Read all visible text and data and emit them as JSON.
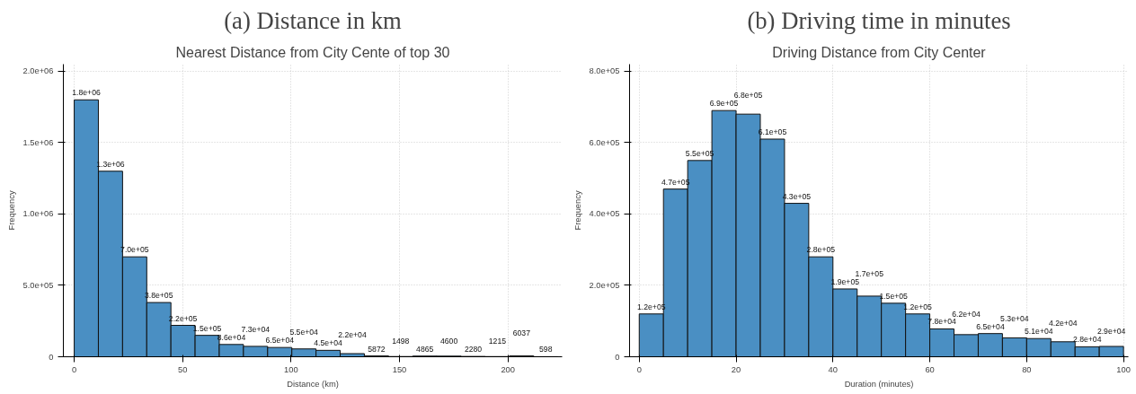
{
  "chart_data": [
    {
      "type": "histogram",
      "annotations": [
        "(a) Distance in km"
      ],
      "title": "Nearest Distance from City Cente of top 30",
      "xlabel": "Distance (km)",
      "ylabel": "Frequency",
      "color": "#4a8fc3",
      "bins": [
        0,
        11.15,
        22.3,
        33.45,
        44.6,
        55.75,
        66.9,
        78.05,
        89.2,
        100.35,
        111.5,
        122.65,
        133.8,
        144.95,
        156.1,
        167.25,
        178.4,
        189.55,
        200.7,
        211.85,
        223
      ],
      "values": [
        1800000,
        1300000,
        700000,
        380000,
        220000,
        150000,
        86000,
        73000,
        65000,
        55000,
        45000,
        22000,
        5872,
        1498,
        4865,
        4600,
        2280,
        1215,
        6037,
        598
      ],
      "value_labels": [
        "1.8e+06",
        "1.3e+06",
        "7.0e+05",
        "3.8e+05",
        "2.2e+05",
        "1.5e+05",
        "8.6e+04",
        "7.3e+04",
        "6.5e+04",
        "5.5e+04",
        "4.5e+04",
        "2.2e+04",
        "5872",
        "1498",
        "4865",
        "4600",
        "2280",
        "1215",
        "6037",
        "598"
      ],
      "xlim": [
        -5,
        225
      ],
      "xticks": [
        0,
        50,
        100,
        150,
        200
      ],
      "ylim": [
        0,
        2050000
      ],
      "yticks": [
        0,
        {
          "value": 500000,
          "label": "5.0e+05"
        },
        {
          "value": 1000000,
          "label": "1.0e+06"
        },
        {
          "value": 1500000,
          "label": "1.5e+06"
        },
        {
          "value": 2000000,
          "label": "2.0e+06"
        }
      ],
      "grid": true
    },
    {
      "type": "histogram",
      "annotations": [
        "(b) Driving time in minutes"
      ],
      "title": "Driving Distance from City Center",
      "xlabel": "Duration (minutes)",
      "ylabel": "Frequency",
      "color": "#4a8fc3",
      "bins": [
        0,
        5,
        10,
        15,
        20,
        25,
        30,
        35,
        40,
        45,
        50,
        55,
        60,
        65,
        70,
        75,
        80,
        85,
        90,
        95,
        100
      ],
      "values": [
        120000,
        470000,
        550000,
        690000,
        680000,
        610000,
        430000,
        280000,
        190000,
        170000,
        150000,
        120000,
        78000,
        62000,
        65000,
        53000,
        51000,
        42000,
        28000,
        29000
      ],
      "value_labels": [
        "1.2e+05",
        "4.7e+05",
        "5.5e+05",
        "6.9e+05",
        "6.8e+05",
        "6.1e+05",
        "4.3e+05",
        "2.8e+05",
        "1.9e+05",
        "1.7e+05",
        "1.5e+05",
        "1.2e+05",
        "7.8e+04",
        "6.2e+04",
        "6.5e+04",
        "5.3e+04",
        "5.1e+04",
        "4.2e+04",
        "2.8e+04",
        "2.9e+04"
      ],
      "xlim": [
        -2,
        101
      ],
      "xticks": [
        0,
        20,
        40,
        60,
        80,
        100
      ],
      "ylim": [
        0,
        820000
      ],
      "yticks": [
        0,
        {
          "value": 200000,
          "label": "2.0e+05"
        },
        {
          "value": 400000,
          "label": "4.0e+05"
        },
        {
          "value": 600000,
          "label": "6.0e+05"
        },
        {
          "value": 800000,
          "label": "8.0e+05"
        }
      ],
      "grid": true
    }
  ]
}
